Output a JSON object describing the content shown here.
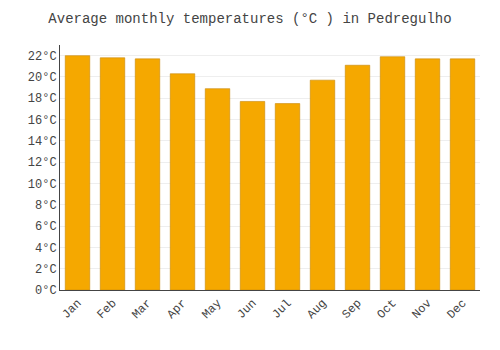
{
  "chart_data": {
    "type": "bar",
    "title": "Average monthly temperatures (°C ) in Pedregulho",
    "categories": [
      "Jan",
      "Feb",
      "Mar",
      "Apr",
      "May",
      "Jun",
      "Jul",
      "Aug",
      "Sep",
      "Oct",
      "Nov",
      "Dec"
    ],
    "values": [
      22.0,
      21.8,
      21.7,
      20.3,
      18.9,
      17.7,
      17.5,
      19.7,
      21.1,
      21.9,
      21.7,
      21.7
    ],
    "color": "#F5A800",
    "ylim": [
      0,
      23
    ],
    "yticks": [
      {
        "value": 0,
        "label": "0°C"
      },
      {
        "value": 2,
        "label": "2°C"
      },
      {
        "value": 4,
        "label": "4°C"
      },
      {
        "value": 6,
        "label": "6°C"
      },
      {
        "value": 8,
        "label": "8°C"
      },
      {
        "value": 10,
        "label": "10°C"
      },
      {
        "value": 12,
        "label": "12°C"
      },
      {
        "value": 14,
        "label": "14°C"
      },
      {
        "value": 16,
        "label": "16°C"
      },
      {
        "value": 18,
        "label": "18°C"
      },
      {
        "value": 20,
        "label": "20°C"
      },
      {
        "value": 22,
        "label": "22°C"
      }
    ],
    "grid": true
  }
}
